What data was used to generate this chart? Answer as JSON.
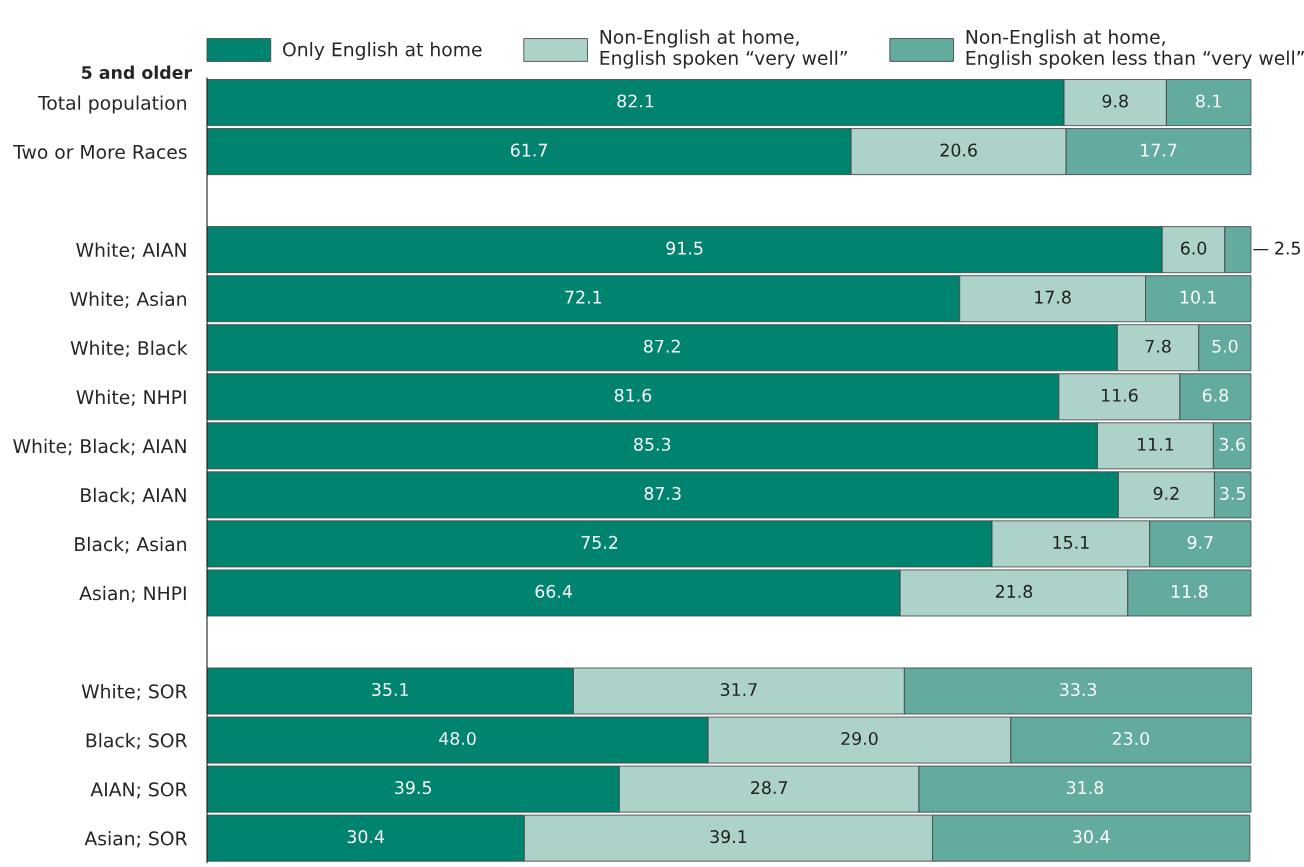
{
  "chart_data": {
    "type": "bar",
    "orientation": "horizontal",
    "stacked": true,
    "legend": "top",
    "grid": false,
    "annotations": [
      "5 and older"
    ],
    "categories": [
      "Total population",
      "Two or More Races",
      null,
      "White; AIAN",
      "White; Asian",
      "White; Black",
      "White; NHPI",
      "White; Black; AIAN",
      "Black; AIAN",
      "Black; Asian",
      "Asian; NHPI",
      null,
      "White; SOR",
      "Black; SOR",
      "AIAN; SOR",
      "Asian; SOR"
    ],
    "series": [
      {
        "name": "Only English at home",
        "color": "#00846f",
        "values": [
          82.1,
          61.7,
          null,
          91.5,
          72.1,
          87.2,
          81.6,
          85.3,
          87.3,
          75.2,
          66.4,
          null,
          35.1,
          48.0,
          39.5,
          30.4
        ],
        "value_labels": [
          "82.1",
          "61.7",
          null,
          "91.5",
          "72.1",
          "87.2",
          "81.6",
          "85.3",
          "87.3",
          "75.2",
          "66.4",
          null,
          "35.1",
          "48.0",
          "39.5",
          "30.4"
        ]
      },
      {
        "name": "Non-English at home,\nEnglish spoken “very well”",
        "color": "#acd2c9",
        "values": [
          9.8,
          20.6,
          null,
          6.0,
          17.8,
          7.8,
          11.6,
          11.1,
          9.2,
          15.1,
          21.8,
          null,
          31.7,
          29.0,
          28.7,
          39.1
        ],
        "value_labels": [
          "9.8",
          "20.6",
          null,
          "6.0",
          "17.8",
          "7.8",
          "11.6",
          "11.1",
          "9.2",
          "15.1",
          "21.8",
          null,
          "31.7",
          "29.0",
          "28.7",
          "39.1"
        ]
      },
      {
        "name": "Non-English at home,\nEnglish spoken less than “very well”",
        "color": "#62ab9e",
        "values": [
          8.1,
          17.7,
          null,
          2.5,
          10.1,
          5.0,
          6.8,
          3.6,
          3.5,
          9.7,
          11.8,
          null,
          33.3,
          23.0,
          31.8,
          30.4
        ],
        "value_labels": [
          "8.1",
          "17.7",
          null,
          "2.5",
          "10.1",
          "5.0",
          "6.8",
          "3.6",
          "3.5",
          "9.7",
          "11.8",
          null,
          "33.3",
          "23.0",
          "31.8",
          "30.4"
        ]
      }
    ]
  }
}
